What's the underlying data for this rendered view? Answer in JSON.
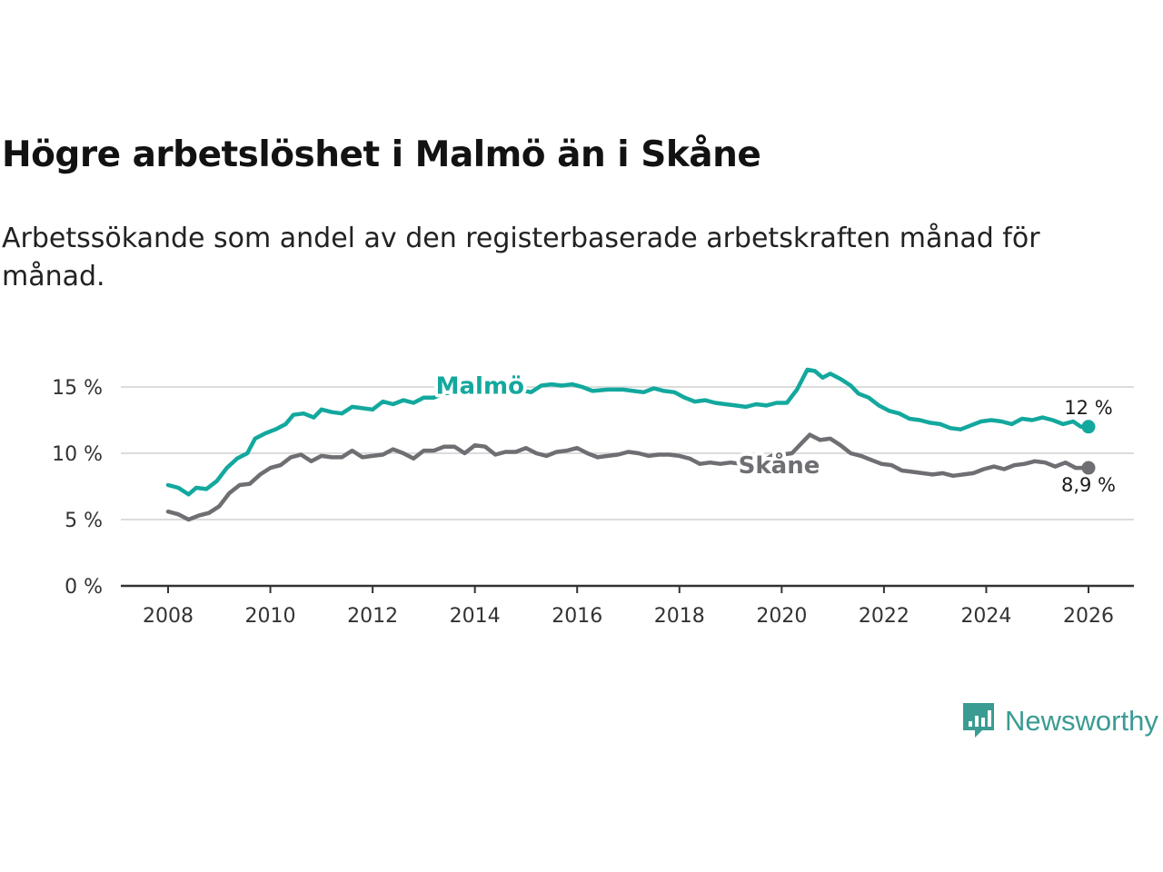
{
  "title": "Högre arbetslöshet i Malmö än i Skåne",
  "subtitle": "Arbetssökande som andel av den registerbaserade arbetskraften månad för månad.",
  "brand": {
    "name": "Newsworthy",
    "icon": "newsworthy-logo-icon"
  },
  "colors": {
    "malmo": "#13a89e",
    "skane": "#6e6e73",
    "grid": "#dcdcdc",
    "axis": "#333333"
  },
  "chart_data": {
    "type": "line",
    "title": "Högre arbetslöshet i Malmö än i Skåne",
    "xlabel": "",
    "ylabel": "",
    "xlim": [
      2007.5,
      2026.9
    ],
    "ylim": [
      0,
      15
    ],
    "x_ticks": [
      2008,
      2010,
      2012,
      2014,
      2016,
      2018,
      2020,
      2022,
      2024,
      2026
    ],
    "x_tick_labels": [
      "2008",
      "2010",
      "2012",
      "2014",
      "2016",
      "2018",
      "2020",
      "2022",
      "2024",
      "2026"
    ],
    "y_ticks": [
      0,
      5,
      10,
      15
    ],
    "y_tick_labels": [
      "0 %",
      "5 %",
      "10 %",
      "15 %"
    ],
    "grid": true,
    "series": [
      {
        "name": "Malmö",
        "color": "#13a89e",
        "end_label": "12 %",
        "points": [
          [
            2008.0,
            7.6
          ],
          [
            2008.2,
            7.4
          ],
          [
            2008.4,
            6.9
          ],
          [
            2008.55,
            7.4
          ],
          [
            2008.75,
            7.3
          ],
          [
            2008.95,
            7.9
          ],
          [
            2009.15,
            8.9
          ],
          [
            2009.35,
            9.6
          ],
          [
            2009.55,
            10.0
          ],
          [
            2009.7,
            11.1
          ],
          [
            2009.9,
            11.5
          ],
          [
            2010.1,
            11.8
          ],
          [
            2010.3,
            12.2
          ],
          [
            2010.45,
            12.9
          ],
          [
            2010.65,
            13.0
          ],
          [
            2010.85,
            12.7
          ],
          [
            2011.0,
            13.3
          ],
          [
            2011.2,
            13.1
          ],
          [
            2011.4,
            13.0
          ],
          [
            2011.6,
            13.5
          ],
          [
            2011.8,
            13.4
          ],
          [
            2012.0,
            13.3
          ],
          [
            2012.2,
            13.9
          ],
          [
            2012.4,
            13.7
          ],
          [
            2012.6,
            14.0
          ],
          [
            2012.8,
            13.8
          ],
          [
            2013.0,
            14.2
          ],
          [
            2013.2,
            14.2
          ],
          [
            2013.4,
            14.5
          ],
          [
            2013.7,
            14.7
          ],
          [
            2014.0,
            14.9
          ],
          [
            2014.3,
            15.0
          ],
          [
            2014.6,
            15.0
          ],
          [
            2014.85,
            14.8
          ],
          [
            2015.1,
            14.6
          ],
          [
            2015.3,
            15.1
          ],
          [
            2015.5,
            15.2
          ],
          [
            2015.7,
            15.1
          ],
          [
            2015.9,
            15.2
          ],
          [
            2016.1,
            15.0
          ],
          [
            2016.3,
            14.7
          ],
          [
            2016.6,
            14.8
          ],
          [
            2016.9,
            14.8
          ],
          [
            2017.1,
            14.7
          ],
          [
            2017.3,
            14.6
          ],
          [
            2017.5,
            14.9
          ],
          [
            2017.7,
            14.7
          ],
          [
            2017.9,
            14.6
          ],
          [
            2018.1,
            14.2
          ],
          [
            2018.3,
            13.9
          ],
          [
            2018.5,
            14.0
          ],
          [
            2018.7,
            13.8
          ],
          [
            2018.9,
            13.7
          ],
          [
            2019.1,
            13.6
          ],
          [
            2019.3,
            13.5
          ],
          [
            2019.5,
            13.7
          ],
          [
            2019.7,
            13.6
          ],
          [
            2019.9,
            13.8
          ],
          [
            2020.1,
            13.8
          ],
          [
            2020.3,
            14.8
          ],
          [
            2020.5,
            16.3
          ],
          [
            2020.65,
            16.2
          ],
          [
            2020.8,
            15.7
          ],
          [
            2020.95,
            16.0
          ],
          [
            2021.15,
            15.6
          ],
          [
            2021.35,
            15.1
          ],
          [
            2021.5,
            14.5
          ],
          [
            2021.7,
            14.2
          ],
          [
            2021.9,
            13.6
          ],
          [
            2022.1,
            13.2
          ],
          [
            2022.3,
            13.0
          ],
          [
            2022.5,
            12.6
          ],
          [
            2022.7,
            12.5
          ],
          [
            2022.9,
            12.3
          ],
          [
            2023.1,
            12.2
          ],
          [
            2023.3,
            11.9
          ],
          [
            2023.5,
            11.8
          ],
          [
            2023.7,
            12.1
          ],
          [
            2023.9,
            12.4
          ],
          [
            2024.1,
            12.5
          ],
          [
            2024.3,
            12.4
          ],
          [
            2024.5,
            12.2
          ],
          [
            2024.7,
            12.6
          ],
          [
            2024.9,
            12.5
          ],
          [
            2025.1,
            12.7
          ],
          [
            2025.3,
            12.5
          ],
          [
            2025.5,
            12.2
          ],
          [
            2025.7,
            12.4
          ],
          [
            2025.85,
            12.0
          ],
          [
            2026.0,
            12.0
          ]
        ]
      },
      {
        "name": "Skåne",
        "color": "#6e6e73",
        "end_label": "8,9 %",
        "points": [
          [
            2008.0,
            5.6
          ],
          [
            2008.2,
            5.4
          ],
          [
            2008.4,
            5.0
          ],
          [
            2008.6,
            5.3
          ],
          [
            2008.8,
            5.5
          ],
          [
            2009.0,
            6.0
          ],
          [
            2009.2,
            7.0
          ],
          [
            2009.4,
            7.6
          ],
          [
            2009.6,
            7.7
          ],
          [
            2009.8,
            8.4
          ],
          [
            2010.0,
            8.9
          ],
          [
            2010.2,
            9.1
          ],
          [
            2010.4,
            9.7
          ],
          [
            2010.6,
            9.9
          ],
          [
            2010.8,
            9.4
          ],
          [
            2011.0,
            9.8
          ],
          [
            2011.2,
            9.7
          ],
          [
            2011.4,
            9.7
          ],
          [
            2011.6,
            10.2
          ],
          [
            2011.8,
            9.7
          ],
          [
            2012.0,
            9.8
          ],
          [
            2012.2,
            9.9
          ],
          [
            2012.4,
            10.3
          ],
          [
            2012.6,
            10.0
          ],
          [
            2012.8,
            9.6
          ],
          [
            2013.0,
            10.2
          ],
          [
            2013.2,
            10.2
          ],
          [
            2013.4,
            10.5
          ],
          [
            2013.6,
            10.5
          ],
          [
            2013.8,
            10.0
          ],
          [
            2014.0,
            10.6
          ],
          [
            2014.2,
            10.5
          ],
          [
            2014.4,
            9.9
          ],
          [
            2014.6,
            10.1
          ],
          [
            2014.8,
            10.1
          ],
          [
            2015.0,
            10.4
          ],
          [
            2015.2,
            10.0
          ],
          [
            2015.4,
            9.8
          ],
          [
            2015.6,
            10.1
          ],
          [
            2015.8,
            10.2
          ],
          [
            2016.0,
            10.4
          ],
          [
            2016.2,
            10.0
          ],
          [
            2016.4,
            9.7
          ],
          [
            2016.6,
            9.8
          ],
          [
            2016.8,
            9.9
          ],
          [
            2017.0,
            10.1
          ],
          [
            2017.2,
            10.0
          ],
          [
            2017.4,
            9.8
          ],
          [
            2017.6,
            9.9
          ],
          [
            2017.8,
            9.9
          ],
          [
            2018.0,
            9.8
          ],
          [
            2018.2,
            9.6
          ],
          [
            2018.4,
            9.2
          ],
          [
            2018.6,
            9.3
          ],
          [
            2018.8,
            9.2
          ],
          [
            2019.0,
            9.3
          ],
          [
            2019.2,
            9.2
          ],
          [
            2019.4,
            9.3
          ],
          [
            2019.6,
            9.3
          ],
          [
            2019.8,
            9.8
          ],
          [
            2020.0,
            9.9
          ],
          [
            2020.2,
            10.0
          ],
          [
            2020.4,
            10.8
          ],
          [
            2020.55,
            11.4
          ],
          [
            2020.75,
            11.0
          ],
          [
            2020.95,
            11.1
          ],
          [
            2021.15,
            10.6
          ],
          [
            2021.35,
            10.0
          ],
          [
            2021.55,
            9.8
          ],
          [
            2021.75,
            9.5
          ],
          [
            2021.95,
            9.2
          ],
          [
            2022.15,
            9.1
          ],
          [
            2022.35,
            8.7
          ],
          [
            2022.55,
            8.6
          ],
          [
            2022.75,
            8.5
          ],
          [
            2022.95,
            8.4
          ],
          [
            2023.15,
            8.5
          ],
          [
            2023.35,
            8.3
          ],
          [
            2023.55,
            8.4
          ],
          [
            2023.75,
            8.5
          ],
          [
            2023.95,
            8.8
          ],
          [
            2024.15,
            9.0
          ],
          [
            2024.35,
            8.8
          ],
          [
            2024.55,
            9.1
          ],
          [
            2024.75,
            9.2
          ],
          [
            2024.95,
            9.4
          ],
          [
            2025.15,
            9.3
          ],
          [
            2025.35,
            9.0
          ],
          [
            2025.55,
            9.3
          ],
          [
            2025.75,
            8.9
          ],
          [
            2026.0,
            8.9
          ]
        ]
      }
    ]
  }
}
